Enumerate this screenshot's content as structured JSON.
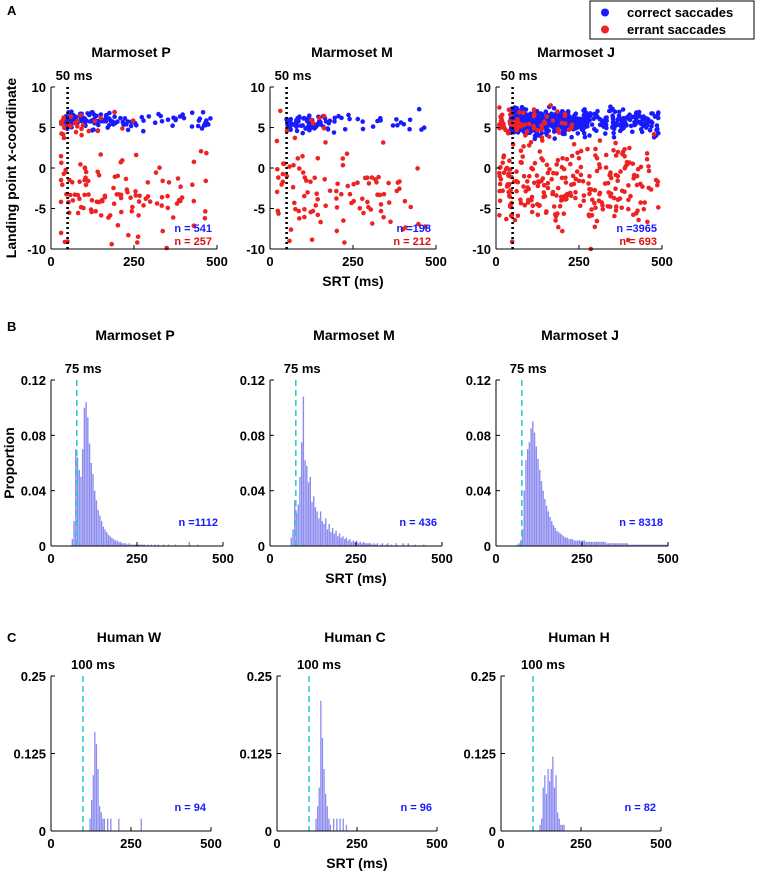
{
  "figure": {
    "panel_labels": [
      "A",
      "B",
      "C"
    ],
    "legend": [
      {
        "label": "correct saccades",
        "color": "#1a1aff"
      },
      {
        "label": "errant saccades",
        "color": "#ee2222"
      }
    ],
    "colors": {
      "correct": "#1a1aff",
      "errant": "#ee2222",
      "histogram": "#8c8cf0",
      "cutoff": "#33cccc",
      "n_correct": "#1a1aff",
      "n_errant": "#dd1111",
      "n_hist": "#1a1aff"
    }
  },
  "chart_data": [
    {
      "id": "A1",
      "type": "scatter",
      "title": "Marmoset P",
      "xlabel": "",
      "ylabel": "Landing point x-coordinate",
      "xlim": [
        0,
        500
      ],
      "ylim": [
        -10,
        10
      ],
      "xticks": [
        0,
        250,
        500
      ],
      "yticks": [
        10,
        5,
        0,
        -5,
        -10
      ],
      "xtick_labels": [
        "0",
        "250",
        "500"
      ],
      "ytick_labels": [
        "10",
        "5",
        "0",
        "-5",
        "-10"
      ],
      "cutoff": {
        "value": 50,
        "label": "50 ms",
        "style": "dotted"
      },
      "series": [
        {
          "name": "correct saccades",
          "n_label": "n = 541",
          "count": 130,
          "y_center": 5.9,
          "y_sd": 0.55,
          "x_min": 45,
          "x_max": 480,
          "x_mode": 120,
          "seed": 11
        },
        {
          "name": "errant saccades",
          "n_label": "n = 257",
          "count": 110,
          "y_center": -3,
          "y_sd": 2.6,
          "x_min": 30,
          "x_max": 480,
          "x_mode": 200,
          "seed": 12,
          "extra_upper": 28
        }
      ]
    },
    {
      "id": "A2",
      "type": "scatter",
      "title": "Marmoset M",
      "xlabel": "SRT (ms)",
      "ylabel": "",
      "xlim": [
        0,
        500
      ],
      "ylim": [
        -10,
        10
      ],
      "xticks": [
        0,
        250,
        500
      ],
      "yticks": [
        10,
        5,
        0,
        -5,
        -10
      ],
      "xtick_labels": [
        "0",
        "250",
        "500"
      ],
      "ytick_labels": [
        "10",
        "5",
        "0",
        "-5",
        "-10"
      ],
      "cutoff": {
        "value": 50,
        "label": "50 ms",
        "style": "dotted"
      },
      "series": [
        {
          "name": "correct saccades",
          "n_label": "n =198",
          "count": 95,
          "y_center": 5.6,
          "y_sd": 0.55,
          "x_min": 50,
          "x_max": 470,
          "x_mode": 120,
          "seed": 21
        },
        {
          "name": "errant saccades",
          "n_label": "n = 212",
          "count": 100,
          "y_center": -3,
          "y_sd": 2.7,
          "x_min": 20,
          "x_max": 470,
          "x_mode": 200,
          "seed": 22,
          "extra_upper": 6
        }
      ]
    },
    {
      "id": "A3",
      "type": "scatter",
      "title": "Marmoset J",
      "xlabel": "",
      "ylabel": "",
      "xlim": [
        0,
        500
      ],
      "ylim": [
        -10,
        10
      ],
      "xticks": [
        0,
        250,
        500
      ],
      "yticks": [
        10,
        5,
        0,
        -5,
        -10
      ],
      "xtick_labels": [
        "0",
        "250",
        "500"
      ],
      "ytick_labels": [
        "10",
        "5",
        "0",
        "-5",
        "-10"
      ],
      "cutoff": {
        "value": 50,
        "label": "50 ms",
        "style": "dotted"
      },
      "series": [
        {
          "name": "correct saccades",
          "n_label": "n =3965",
          "count": 650,
          "y_center": 5.7,
          "y_sd": 0.7,
          "x_min": 45,
          "x_max": 490,
          "x_mode": 150,
          "seed": 31
        },
        {
          "name": "errant saccades",
          "n_label": "n = 693",
          "count": 260,
          "y_center": -2.5,
          "y_sd": 2.6,
          "x_min": 10,
          "x_max": 490,
          "x_mode": 220,
          "seed": 32,
          "extra_upper": 70
        }
      ]
    },
    {
      "id": "B1",
      "type": "bar",
      "subtype": "histogram",
      "title": "Marmoset P",
      "xlabel": "",
      "ylabel": "Proportion",
      "xlim": [
        0,
        500
      ],
      "ylim": [
        0,
        0.12
      ],
      "xticks": [
        0,
        250,
        500
      ],
      "yticks": [
        0,
        0.04,
        0.08,
        0.12
      ],
      "xtick_labels": [
        "0",
        "250",
        "500"
      ],
      "ytick_labels": [
        "0",
        "0.04",
        "0.08",
        "0.12"
      ],
      "cutoff": {
        "value": 75,
        "label": "75 ms",
        "style": "dashed"
      },
      "n_label": "n =1112",
      "bin_start": 60,
      "bin_width": 5,
      "values": [
        0.005,
        0.018,
        0.07,
        0.064,
        0.055,
        0.05,
        0.07,
        0.1,
        0.104,
        0.093,
        0.074,
        0.06,
        0.052,
        0.04,
        0.033,
        0.026,
        0.022,
        0.018,
        0.014,
        0.012,
        0.01,
        0.008,
        0.007,
        0.006,
        0.005,
        0.004,
        0.004,
        0.003,
        0.003,
        0.002,
        0.002,
        0.002,
        0.001,
        0.002,
        0.001,
        0.001,
        0.001,
        0.001,
        0.001,
        0.001,
        0.001,
        0.001,
        0.001,
        0,
        0.001,
        0,
        0.001,
        0,
        0.001,
        0,
        0.001,
        0,
        0,
        0.001,
        0,
        0,
        0.001,
        0,
        0,
        0,
        0.001,
        0,
        0,
        0,
        0,
        0,
        0,
        0,
        0.003,
        0,
        0,
        0,
        0,
        0.001
      ]
    },
    {
      "id": "B2",
      "type": "bar",
      "subtype": "histogram",
      "title": "Marmoset M",
      "xlabel": "SRT (ms)",
      "ylabel": "",
      "xlim": [
        0,
        500
      ],
      "ylim": [
        0,
        0.12
      ],
      "xticks": [
        0,
        250,
        500
      ],
      "yticks": [
        0,
        0.04,
        0.08,
        0.12
      ],
      "xtick_labels": [
        "0",
        "250",
        "500"
      ],
      "ytick_labels": [
        "0",
        "0.04",
        "0.08",
        "0.12"
      ],
      "cutoff": {
        "value": 75,
        "label": "75 ms",
        "style": "dashed"
      },
      "n_label": "n = 436",
      "bin_start": 60,
      "bin_width": 5,
      "values": [
        0.006,
        0.012,
        0.033,
        0.024,
        0.03,
        0.05,
        0.075,
        0.108,
        0.062,
        0.058,
        0.046,
        0.05,
        0.032,
        0.036,
        0.028,
        0.025,
        0.02,
        0.025,
        0.018,
        0.016,
        0.02,
        0.012,
        0.016,
        0.01,
        0.013,
        0.009,
        0.011,
        0.007,
        0.009,
        0.006,
        0.007,
        0.005,
        0.006,
        0.004,
        0.005,
        0.003,
        0.004,
        0.003,
        0.004,
        0.002,
        0.003,
        0.002,
        0.003,
        0.002,
        0.002,
        0.002,
        0.002,
        0.001,
        0.002,
        0.001,
        0.002,
        0,
        0.001,
        0.002,
        0,
        0.001,
        0.002,
        0,
        0.001,
        0,
        0,
        0.002,
        0,
        0,
        0,
        0.002,
        0,
        0,
        0.002,
        0,
        0,
        0,
        0.001,
        0,
        0,
        0,
        0,
        0.001
      ]
    },
    {
      "id": "B3",
      "type": "bar",
      "subtype": "histogram",
      "title": "Marmoset J",
      "xlabel": "",
      "ylabel": "",
      "xlim": [
        0,
        500
      ],
      "ylim": [
        0,
        0.12
      ],
      "xticks": [
        0,
        250,
        500
      ],
      "yticks": [
        0,
        0.04,
        0.08,
        0.12
      ],
      "xtick_labels": [
        "0",
        "250",
        "500"
      ],
      "ytick_labels": [
        "0",
        "0.04",
        "0.08",
        "0.12"
      ],
      "cutoff": {
        "value": 75,
        "label": "75 ms",
        "style": "dashed"
      },
      "n_label": "n = 8318",
      "bin_start": 60,
      "bin_width": 5,
      "values": [
        0.001,
        0.002,
        0.004,
        0.012,
        0.04,
        0.062,
        0.07,
        0.075,
        0.085,
        0.09,
        0.082,
        0.072,
        0.063,
        0.055,
        0.047,
        0.04,
        0.034,
        0.029,
        0.025,
        0.021,
        0.018,
        0.015,
        0.013,
        0.011,
        0.01,
        0.009,
        0.008,
        0.007,
        0.006,
        0.006,
        0.005,
        0.005,
        0.005,
        0.004,
        0.004,
        0.004,
        0.004,
        0.004,
        0.004,
        0.004,
        0.003,
        0.003,
        0.003,
        0.003,
        0.003,
        0.003,
        0.003,
        0.003,
        0.003,
        0.003,
        0.003,
        0.003,
        0.002,
        0.002,
        0.002,
        0.002,
        0.002,
        0.002,
        0.002,
        0.002,
        0.002,
        0.002,
        0.002,
        0.002,
        0.002,
        0.001,
        0.001,
        0.001,
        0.001,
        0.001,
        0.001,
        0.001,
        0.001,
        0.001,
        0.001,
        0.001,
        0.001,
        0.001,
        0.001,
        0.001,
        0.001,
        0.001,
        0.001,
        0.001,
        0.001,
        0.001,
        0.001,
        0.001
      ]
    },
    {
      "id": "C1",
      "type": "bar",
      "subtype": "histogram",
      "title": "Human W",
      "xlabel": "",
      "ylabel": "",
      "xlim": [
        0,
        500
      ],
      "ylim": [
        0,
        0.25
      ],
      "xticks": [
        0,
        250,
        500
      ],
      "yticks": [
        0,
        0.125,
        0.25
      ],
      "xtick_labels": [
        "0",
        "250",
        "500"
      ],
      "ytick_labels": [
        "0",
        "0.125",
        "0.25"
      ],
      "cutoff": {
        "value": 100,
        "label": "100 ms",
        "style": "dashed"
      },
      "n_label": "n = 94",
      "bin_start": 120,
      "bin_width": 5,
      "values": [
        0.02,
        0.05,
        0.09,
        0.16,
        0.14,
        0.1,
        0.04,
        0.03,
        0.02,
        0.02,
        0,
        0.02,
        0,
        0.02,
        0,
        0,
        0,
        0,
        0.02,
        0,
        0,
        0,
        0,
        0,
        0,
        0,
        0,
        0,
        0,
        0,
        0,
        0,
        0.02
      ]
    },
    {
      "id": "C2",
      "type": "bar",
      "subtype": "histogram",
      "title": "Human C",
      "xlabel": "SRT (ms)",
      "ylabel": "",
      "xlim": [
        0,
        500
      ],
      "ylim": [
        0,
        0.25
      ],
      "xticks": [
        0,
        250,
        500
      ],
      "yticks": [
        0,
        0.125,
        0.25
      ],
      "xtick_labels": [
        "0",
        "250",
        "500"
      ],
      "ytick_labels": [
        "0",
        "0.125",
        "0.25"
      ],
      "cutoff": {
        "value": 100,
        "label": "100 ms",
        "style": "dashed"
      },
      "n_label": "n = 96",
      "bin_start": 120,
      "bin_width": 5,
      "values": [
        0.02,
        0.04,
        0.07,
        0.21,
        0.15,
        0.1,
        0.06,
        0.04,
        0.02,
        0.01,
        0,
        0.02,
        0,
        0.02,
        0,
        0.02,
        0,
        0.02,
        0,
        0.01
      ]
    },
    {
      "id": "C3",
      "type": "bar",
      "subtype": "histogram",
      "title": "Human H",
      "xlabel": "",
      "ylabel": "",
      "xlim": [
        0,
        500
      ],
      "ylim": [
        0,
        0.25
      ],
      "xticks": [
        0,
        250,
        500
      ],
      "yticks": [
        0,
        0.125,
        0.25
      ],
      "xtick_labels": [
        "0",
        "250",
        "500"
      ],
      "ytick_labels": [
        "0",
        "0.125",
        "0.25"
      ],
      "cutoff": {
        "value": 100,
        "label": "100 ms",
        "style": "dashed"
      },
      "n_label": "n = 82",
      "bin_start": 120,
      "bin_width": 5,
      "values": [
        0.01,
        0.02,
        0.07,
        0.09,
        0.06,
        0.1,
        0.08,
        0.1,
        0.12,
        0.07,
        0.09,
        0.03,
        0.02,
        0.01,
        0.01,
        0.01
      ]
    }
  ]
}
